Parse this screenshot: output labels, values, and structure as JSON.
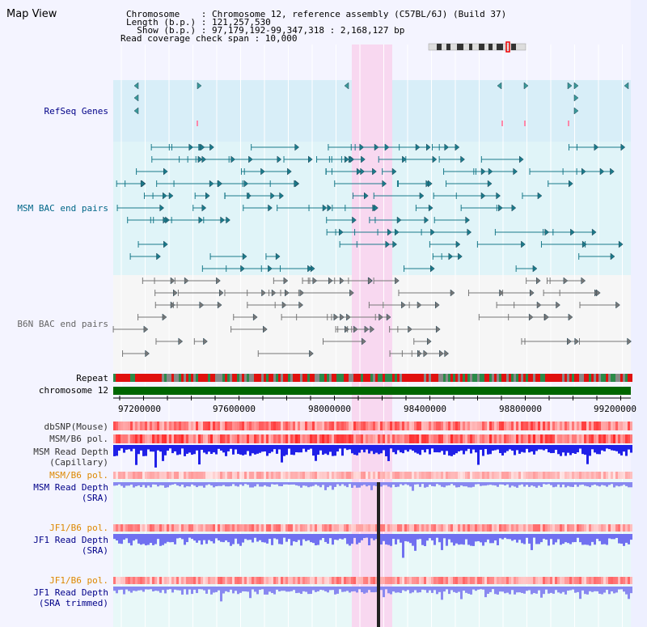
{
  "header": {
    "view_title": "Map View",
    "chromosome_line": "Chromosome    : Chromosome 12, reference assembly (C57BL/6J) (Build 37)",
    "length_line": "Length (b.p.) : 121,257,530",
    "show_line": "  Show (b.p.) : 97,179,192-99,347,318 : 2,168,127 bp",
    "coverage_line": "Read coverage check span : 10,000"
  },
  "tracks": {
    "refseq": "RefSeq Genes",
    "msm_bac": "MSM BAC end pairs",
    "b6n_bac": "B6N BAC end pairs",
    "repeat": "Repeat",
    "chromosome": "chromosome 12",
    "dbsnp": "dbSNP(Mouse)",
    "msm_b6_pol_1": "MSM/B6 pol.",
    "msm_depth_cap": "MSM Read Depth\n(Capillary)",
    "msm_b6_pol_2": "MSM/B6 pol.",
    "msm_depth_sra": "MSM Read Depth\n(SRA)",
    "jf1_b6_pol_1": "JF1/B6 pol.",
    "jf1_depth_sra": "JF1 Read Depth\n(SRA)",
    "jf1_b6_pol_2": "JF1/B6 pol.",
    "jf1_depth_trim": "JF1 Read Depth\n(SRA trimmed)"
  },
  "axis": {
    "ticks": [
      "97200000",
      "97600000",
      "98000000",
      "98400000",
      "98800000",
      "99200000"
    ]
  },
  "colors": {
    "refseq_label": "#000088",
    "msm_label": "#006688",
    "b6n_label": "#666666",
    "pol_label": "#dd8800",
    "depth_label": "#000088",
    "highlight": "#f8d8f0",
    "chromosome_bar": "#006600"
  }
}
